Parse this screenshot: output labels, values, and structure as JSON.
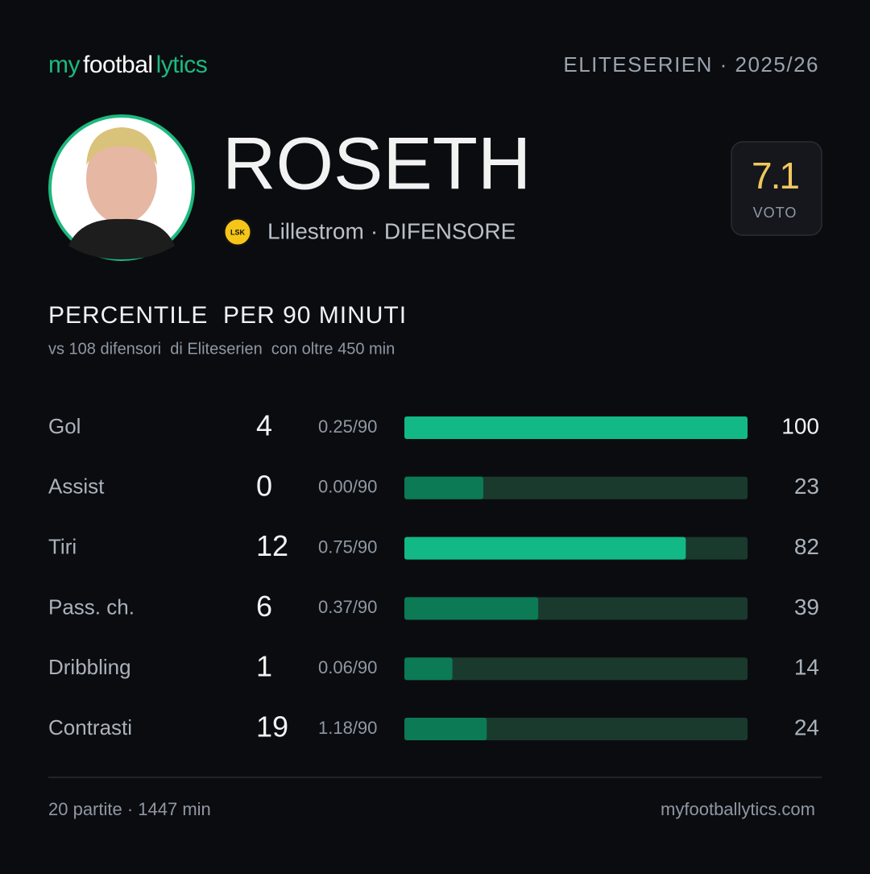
{
  "header": {
    "brand": [
      {
        "text": "my",
        "color": "#1db97f"
      },
      {
        "text": "footbal",
        "color": "#ffffff"
      },
      {
        "text": "lytics",
        "color": "#1db97f"
      }
    ],
    "league": "ELITESERIEN · 2025/26"
  },
  "player": {
    "name": "ROSETH",
    "club_badge": "LSK",
    "club": "Lillestrom",
    "position": "· DIFENSORE",
    "rating": 7.1,
    "rating_label": "VOTO"
  },
  "section": {
    "title": "PERCENTILE  PER 90 MINUTI",
    "subtitle": "vs 108 difensori  di Eliteserien  con oltre 450 min"
  },
  "percentile_range": [
    0,
    100
  ],
  "track_color": "#1a3a2e",
  "rows": [
    {
      "label": "Gol",
      "total": 4,
      "per90": "0.25/90",
      "percentile": 100,
      "color": "#12b886"
    },
    {
      "label": "Assist",
      "total": 0,
      "per90": "0.00/90",
      "percentile": 23,
      "color": "#0b7a55"
    },
    {
      "label": "Tiri",
      "total": 12,
      "per90": "0.75/90",
      "percentile": 82,
      "color": "#12b886"
    },
    {
      "label": "Pass. ch.",
      "total": 6,
      "per90": "0.37/90",
      "percentile": 39,
      "color": "#0b7a55"
    },
    {
      "label": "Dribbling",
      "total": 1,
      "per90": "0.06/90",
      "percentile": 14,
      "color": "#0b7a55"
    },
    {
      "label": "Contrasti",
      "total": 19,
      "per90": "1.18/90",
      "percentile": 24,
      "color": "#0b7a55"
    }
  ],
  "footer": {
    "summary": "20 partite · 1447 min",
    "site": "myfootballytics.com"
  }
}
